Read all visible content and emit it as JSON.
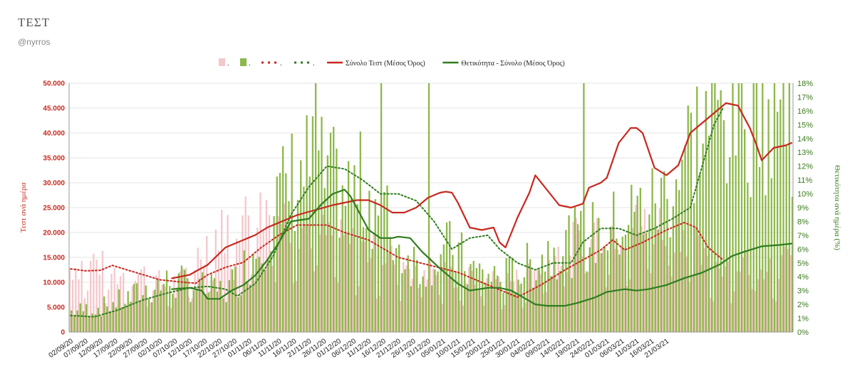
{
  "header": {
    "title": "ΤΕΣΤ",
    "handle": "@nyrros"
  },
  "chart_data": {
    "type": "bar",
    "title": "",
    "ylabel": "Τεστ ανά ημέρα",
    "y2label": "Θετικότητα ανά ημέρα (%)",
    "ylim": [
      0,
      50000
    ],
    "y2lim": [
      0,
      0.18
    ],
    "y_ticks": [
      "0",
      "5.000",
      "10.000",
      "15.000",
      "20.000",
      "25.000",
      "30.000",
      "35.000",
      "40.000",
      "45.000",
      "50.000"
    ],
    "y2_ticks": [
      "0%",
      "1%",
      "2%",
      "3%",
      "4%",
      "5%",
      "6%",
      "7%",
      "8%",
      "9%",
      "10%",
      "11%",
      "12%",
      "13%",
      "14%",
      "15%",
      "16%",
      "17%",
      "18%"
    ],
    "x_ticks": [
      "02/09/20",
      "07/09/20",
      "12/09/20",
      "17/09/20",
      "22/09/20",
      "27/09/20",
      "02/10/20",
      "07/10/20",
      "12/10/20",
      "17/10/20",
      "22/10/20",
      "27/10/20",
      "01/11/20",
      "06/11/20",
      "11/11/20",
      "16/11/20",
      "21/11/20",
      "26/11/20",
      "01/12/20",
      "06/12/20",
      "11/12/20",
      "16/12/20",
      "21/12/20",
      "26/12/20",
      "31/12/20",
      "05/01/21",
      "10/01/21",
      "15/01/21",
      "20/01/21",
      "25/01/21",
      "30/01/21",
      "04/02/21",
      "09/02/21",
      "14/02/21",
      "19/02/21",
      "24/02/21",
      "01/03/21",
      "06/03/21",
      "11/03/21",
      "16/03/21",
      "21/03/21"
    ],
    "legend": {
      "placement": "top",
      "entries": [
        {
          "label": ".",
          "style": "bar",
          "color": "#f4c7cb"
        },
        {
          "label": ".",
          "style": "bar",
          "color": "#8db84a"
        },
        {
          "label": ".",
          "style": "dotted",
          "color": "#c8281e"
        },
        {
          "label": ".",
          "style": "dotted",
          "color": "#2e7d1e"
        },
        {
          "label": "Σύνολο Τεστ (Μέσος Όρος)",
          "style": "line",
          "color": "#c8281e"
        },
        {
          "label": "Θετικότητα - Σύνολο (Μέσος Όρος)",
          "style": "line",
          "color": "#2e7d1e"
        }
      ]
    },
    "series": [
      {
        "name": ".",
        "kind": "bar",
        "axis": "left",
        "color": "#f4c7cb",
        "keypoints": [
          [
            0,
            12800
          ],
          [
            8,
            14500
          ],
          [
            16,
            11500
          ],
          [
            24,
            12000
          ],
          [
            32,
            9500
          ],
          [
            38,
            10500
          ],
          [
            46,
            18500
          ],
          [
            56,
            22500
          ],
          [
            66,
            25000
          ],
          [
            80,
            21000
          ],
          [
            90,
            18500
          ],
          [
            100,
            16500
          ],
          [
            110,
            14500
          ],
          [
            120,
            13000
          ],
          [
            130,
            11000
          ],
          [
            140,
            10500
          ],
          [
            150,
            10500
          ],
          [
            160,
            14000
          ],
          [
            170,
            19500
          ],
          [
            176,
            21000
          ],
          [
            186,
            21000
          ],
          [
            196,
            22000
          ],
          [
            206,
            21000
          ],
          [
            214,
            13000
          ],
          [
            219,
            14000
          ]
        ]
      },
      {
        "name": ".",
        "kind": "bar",
        "axis": "right",
        "color": "#8db84a",
        "keypoints": [
          [
            0,
            0.015
          ],
          [
            10,
            0.018
          ],
          [
            20,
            0.025
          ],
          [
            30,
            0.035
          ],
          [
            40,
            0.035
          ],
          [
            46,
            0.03
          ],
          [
            52,
            0.03
          ],
          [
            56,
            0.04
          ],
          [
            62,
            0.06
          ],
          [
            68,
            0.09
          ],
          [
            74,
            0.11
          ],
          [
            80,
            0.12
          ],
          [
            86,
            0.11
          ],
          [
            92,
            0.1
          ],
          [
            98,
            0.105
          ],
          [
            104,
            0.09
          ],
          [
            110,
            0.06
          ],
          [
            116,
            0.05
          ],
          [
            122,
            0.055
          ],
          [
            128,
            0.06
          ],
          [
            134,
            0.045
          ],
          [
            140,
            0.04
          ],
          [
            146,
            0.04
          ],
          [
            152,
            0.045
          ],
          [
            158,
            0.055
          ],
          [
            164,
            0.065
          ],
          [
            170,
            0.065
          ],
          [
            176,
            0.07
          ],
          [
            182,
            0.075
          ],
          [
            188,
            0.085
          ],
          [
            194,
            0.09
          ],
          [
            200,
            0.1
          ],
          [
            206,
            0.13
          ],
          [
            212,
            0.15
          ],
          [
            216,
            0.155
          ],
          [
            219,
            0.16
          ]
        ]
      },
      {
        "name": ".",
        "kind": "dotted",
        "axis": "left",
        "color": "#c8281e",
        "keypoints": [
          [
            0,
            12700
          ],
          [
            5,
            12300
          ],
          [
            10,
            12400
          ],
          [
            14,
            13400
          ],
          [
            20,
            12300
          ],
          [
            30,
            10500
          ],
          [
            38,
            10000
          ],
          [
            42,
            9800
          ],
          [
            46,
            11500
          ],
          [
            52,
            13000
          ],
          [
            58,
            14000
          ],
          [
            64,
            17000
          ],
          [
            70,
            19500
          ],
          [
            76,
            21500
          ],
          [
            86,
            21500
          ],
          [
            92,
            20000
          ],
          [
            100,
            18500
          ],
          [
            110,
            15000
          ],
          [
            120,
            13500
          ],
          [
            130,
            12000
          ],
          [
            140,
            9500
          ],
          [
            150,
            7000
          ],
          [
            158,
            9500
          ],
          [
            166,
            12500
          ],
          [
            172,
            14500
          ],
          [
            178,
            16500
          ],
          [
            182,
            18500
          ],
          [
            186,
            16500
          ],
          [
            192,
            18000
          ],
          [
            200,
            20500
          ],
          [
            206,
            22000
          ],
          [
            210,
            21000
          ],
          [
            214,
            17000
          ],
          [
            219,
            14500
          ]
        ]
      },
      {
        "name": ".",
        "kind": "dotted",
        "axis": "right",
        "color": "#2e7d1e",
        "keypoints": [
          [
            0,
            0.012
          ],
          [
            8,
            0.011
          ],
          [
            16,
            0.016
          ],
          [
            24,
            0.023
          ],
          [
            32,
            0.028
          ],
          [
            40,
            0.032
          ],
          [
            46,
            0.033
          ],
          [
            52,
            0.031
          ],
          [
            56,
            0.026
          ],
          [
            62,
            0.035
          ],
          [
            68,
            0.055
          ],
          [
            74,
            0.085
          ],
          [
            80,
            0.105
          ],
          [
            86,
            0.12
          ],
          [
            92,
            0.118
          ],
          [
            98,
            0.11
          ],
          [
            104,
            0.1
          ],
          [
            110,
            0.1
          ],
          [
            116,
            0.095
          ],
          [
            122,
            0.08
          ],
          [
            128,
            0.06
          ],
          [
            134,
            0.068
          ],
          [
            140,
            0.07
          ],
          [
            144,
            0.06
          ],
          [
            150,
            0.05
          ],
          [
            156,
            0.045
          ],
          [
            162,
            0.05
          ],
          [
            168,
            0.05
          ],
          [
            172,
            0.065
          ],
          [
            178,
            0.075
          ],
          [
            184,
            0.075
          ],
          [
            190,
            0.07
          ],
          [
            196,
            0.075
          ],
          [
            202,
            0.082
          ],
          [
            208,
            0.09
          ],
          [
            212,
            0.12
          ],
          [
            216,
            0.15
          ],
          [
            219,
            0.162
          ]
        ]
      },
      {
        "name": "Σύνολο Τεστ (Μέσος Όρος)",
        "kind": "line",
        "axis": "left",
        "color": "#c8281e",
        "keypoints": [
          [
            34,
            10800
          ],
          [
            40,
            11500
          ],
          [
            42,
            12200
          ],
          [
            46,
            13500
          ],
          [
            52,
            17000
          ],
          [
            58,
            18500
          ],
          [
            62,
            19500
          ],
          [
            66,
            21000
          ],
          [
            70,
            22000
          ],
          [
            76,
            23500
          ],
          [
            82,
            24500
          ],
          [
            88,
            25500
          ],
          [
            92,
            26000
          ],
          [
            96,
            26500
          ],
          [
            100,
            26500
          ],
          [
            104,
            25500
          ],
          [
            108,
            24000
          ],
          [
            112,
            24000
          ],
          [
            116,
            25000
          ],
          [
            120,
            27000
          ],
          [
            124,
            28000
          ],
          [
            126,
            28200
          ],
          [
            128,
            28000
          ],
          [
            130,
            26000
          ],
          [
            134,
            21000
          ],
          [
            138,
            20500
          ],
          [
            142,
            21000
          ],
          [
            144,
            18000
          ],
          [
            146,
            17000
          ],
          [
            150,
            23000
          ],
          [
            154,
            28000
          ],
          [
            156,
            31500
          ],
          [
            160,
            28500
          ],
          [
            164,
            25500
          ],
          [
            168,
            25000
          ],
          [
            172,
            25800
          ],
          [
            174,
            29000
          ],
          [
            178,
            30000
          ],
          [
            180,
            31000
          ],
          [
            184,
            38000
          ],
          [
            188,
            41000
          ],
          [
            190,
            41000
          ],
          [
            192,
            40000
          ],
          [
            196,
            33000
          ],
          [
            200,
            31500
          ],
          [
            204,
            33500
          ],
          [
            208,
            40000
          ],
          [
            212,
            42000
          ],
          [
            216,
            44000
          ],
          [
            220,
            46000
          ],
          [
            224,
            45500
          ],
          [
            228,
            41000
          ],
          [
            230,
            38000
          ],
          [
            232,
            34500
          ],
          [
            236,
            37000
          ],
          [
            240,
            37500
          ],
          [
            242,
            38000
          ]
        ]
      },
      {
        "name": "Θετικότητα - Σύνολο (Μέσος Όρος)",
        "kind": "line",
        "axis": "right",
        "color": "#2e7d1e",
        "keypoints": [
          [
            34,
            0.031
          ],
          [
            40,
            0.032
          ],
          [
            44,
            0.03
          ],
          [
            46,
            0.024
          ],
          [
            50,
            0.024
          ],
          [
            54,
            0.03
          ],
          [
            58,
            0.034
          ],
          [
            62,
            0.041
          ],
          [
            66,
            0.052
          ],
          [
            70,
            0.065
          ],
          [
            74,
            0.08
          ],
          [
            80,
            0.082
          ],
          [
            84,
            0.092
          ],
          [
            88,
            0.1
          ],
          [
            92,
            0.103
          ],
          [
            94,
            0.098
          ],
          [
            100,
            0.074
          ],
          [
            104,
            0.068
          ],
          [
            108,
            0.068
          ],
          [
            110,
            0.069
          ],
          [
            114,
            0.068
          ],
          [
            118,
            0.058
          ],
          [
            124,
            0.046
          ],
          [
            130,
            0.035
          ],
          [
            134,
            0.03
          ],
          [
            140,
            0.032
          ],
          [
            144,
            0.032
          ],
          [
            148,
            0.03
          ],
          [
            152,
            0.025
          ],
          [
            156,
            0.02
          ],
          [
            160,
            0.019
          ],
          [
            166,
            0.019
          ],
          [
            170,
            0.021
          ],
          [
            176,
            0.025
          ],
          [
            180,
            0.029
          ],
          [
            186,
            0.031
          ],
          [
            190,
            0.03
          ],
          [
            194,
            0.031
          ],
          [
            200,
            0.034
          ],
          [
            206,
            0.039
          ],
          [
            212,
            0.043
          ],
          [
            218,
            0.049
          ],
          [
            222,
            0.055
          ],
          [
            226,
            0.058
          ],
          [
            232,
            0.062
          ],
          [
            238,
            0.063
          ],
          [
            242,
            0.064
          ]
        ]
      }
    ]
  }
}
